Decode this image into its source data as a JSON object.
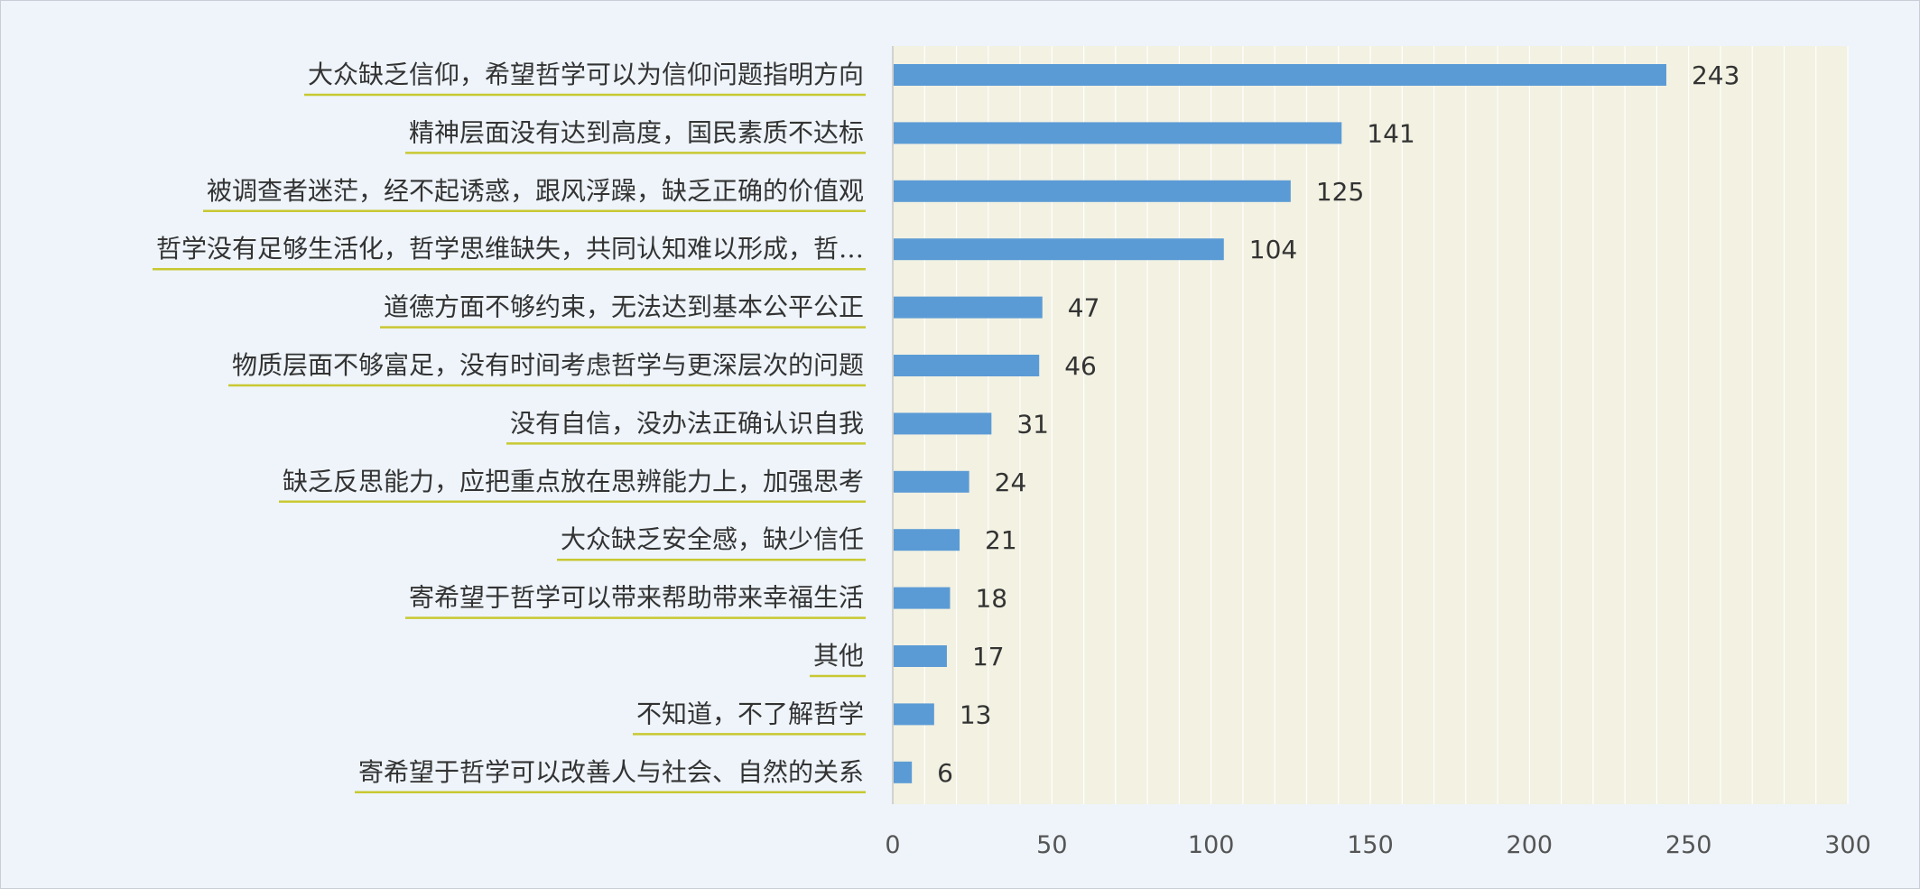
{
  "chart_data": {
    "type": "bar",
    "orientation": "horizontal",
    "categories": [
      "大众缺乏信仰，希望哲学可以为信仰问题指明方向",
      "精神层面没有达到高度，国民素质不达标",
      "被调查者迷茫，经不起诱惑，跟风浮躁，缺乏正确的价值观",
      "哲学没有足够生活化，哲学思维缺失，共同认知难以形成，哲…",
      "道德方面不够约束，无法达到基本公平公正",
      "物质层面不够富足，没有时间考虑哲学与更深层次的问题",
      "没有自信，没办法正确认识自我",
      "缺乏反思能力，应把重点放在思辨能力上，加强思考",
      "大众缺乏安全感，缺少信任",
      "寄希望于哲学可以带来帮助带来幸福生活",
      "其他",
      "不知道，不了解哲学",
      "寄希望于哲学可以改善人与社会、自然的关系"
    ],
    "values": [
      243,
      141,
      125,
      104,
      47,
      46,
      31,
      24,
      21,
      18,
      17,
      13,
      6
    ],
    "xlim": [
      0,
      300
    ],
    "xticks": [
      0,
      50,
      100,
      150,
      200,
      250,
      300
    ],
    "title": "",
    "xlabel": "",
    "ylabel": "",
    "grid": "vertical",
    "legend": "none",
    "colors": {
      "bar": "#5b9bd5",
      "plot_background": "#f2f1e2",
      "gridline": "#ffffff",
      "label_underline": "#c8c832",
      "page_background": "#eef4fa",
      "text": "#333333"
    }
  }
}
